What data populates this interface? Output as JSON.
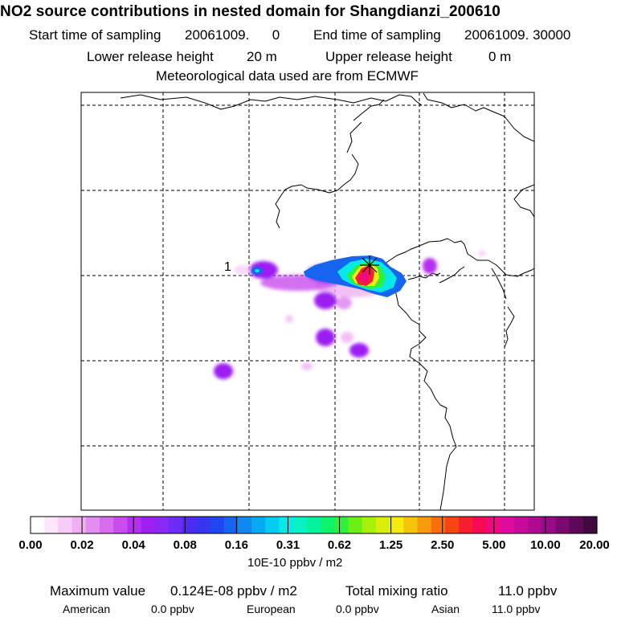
{
  "title": "NO2 source contributions in nested domain for Shangdianzi_200610",
  "header": {
    "start_label": "Start time of sampling",
    "start_value": "20061009.      0",
    "end_label": "End time of sampling",
    "end_value": "20061009. 30000",
    "lower_label": "Lower release height",
    "lower_value": "20 m",
    "upper_label": "Upper release height",
    "upper_value": "0 m",
    "met_text": "Meteorological data used are from ECMWF"
  },
  "map": {
    "site_marker_label": "1"
  },
  "legend": {
    "colors": [
      "#ffffff",
      "#fbe6fb",
      "#f6ccf6",
      "#efb0f2",
      "#e48df0",
      "#d86cef",
      "#c84cee",
      "#b62ff0",
      "#9d1ff2",
      "#8a28f4",
      "#6a2cf6",
      "#4c2cf4",
      "#3535f2",
      "#2046f2",
      "#1565f0",
      "#0f89f0",
      "#07aaf2",
      "#05cdf2",
      "#07e8e8",
      "#08f2c4",
      "#06f29e",
      "#10f26a",
      "#2cf23a",
      "#6cf014",
      "#a8ef0a",
      "#d8ef0a",
      "#f6ec0c",
      "#f7c40c",
      "#f79a0c",
      "#f7700c",
      "#f74612",
      "#f71e30",
      "#f60a56",
      "#f00a80",
      "#e00aa0",
      "#c80a9a",
      "#b00a90",
      "#980a86",
      "#7a0a70",
      "#5c0a58",
      "#400a40"
    ],
    "tick_labels": [
      "0.00",
      "0.02",
      "0.04",
      "0.08",
      "0.16",
      "0.31",
      "0.62",
      "1.25",
      "2.50",
      "5.00",
      "10.00",
      "20.00"
    ],
    "unit": "10E-10 ppbv / m2"
  },
  "footer": {
    "max_label": "Maximum value",
    "max_value": "0.124E-08 ppbv / m2",
    "total_label": "Total mixing ratio",
    "total_value": "11.0 ppbv",
    "american_label": "American",
    "american_value": "0.0 ppbv",
    "european_label": "European",
    "european_value": "0.0 ppbv",
    "asian_label": "Asian",
    "asian_value": "11.0 ppbv"
  }
}
